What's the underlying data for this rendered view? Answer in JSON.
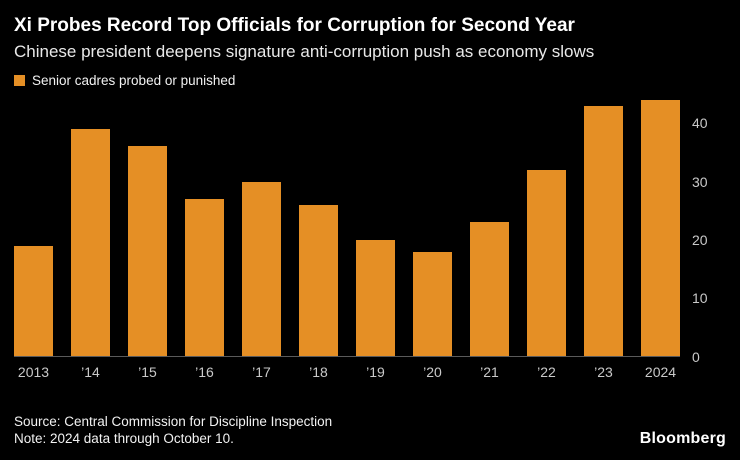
{
  "header": {
    "title": "Xi Probes Record Top Officials for Corruption for Second Year",
    "subtitle": "Chinese president deepens signature anti-corruption push as economy slows"
  },
  "legend": {
    "label": "Senior cadres probed or punished",
    "color": "#e58f25"
  },
  "chart_data": {
    "type": "bar",
    "title": "Xi Probes Record Top Officials for Corruption for Second Year",
    "subtitle": "Chinese president deepens signature anti-corruption push as economy slows",
    "legend_entries": [
      "Senior cadres probed or punished"
    ],
    "legend_position": "top-left",
    "categories": [
      "2013",
      "’14",
      "’15",
      "’16",
      "’17",
      "’18",
      "’19",
      "’20",
      "’21",
      "’22",
      "’23",
      "2024"
    ],
    "values": [
      19,
      39,
      36,
      27,
      30,
      26,
      20,
      18,
      23,
      32,
      43,
      44
    ],
    "xlabel": "",
    "ylabel": "",
    "ylim": [
      0,
      45
    ],
    "yticks": [
      0,
      10,
      20,
      30,
      40
    ],
    "axis_side": "right",
    "grid": false,
    "bar_color": "#e58f25",
    "background_color": "#000000"
  },
  "footer": {
    "source": "Source: Central Commission for Discipline Inspection",
    "note": "Note: 2024 data through October 10.",
    "brand": "Bloomberg"
  }
}
